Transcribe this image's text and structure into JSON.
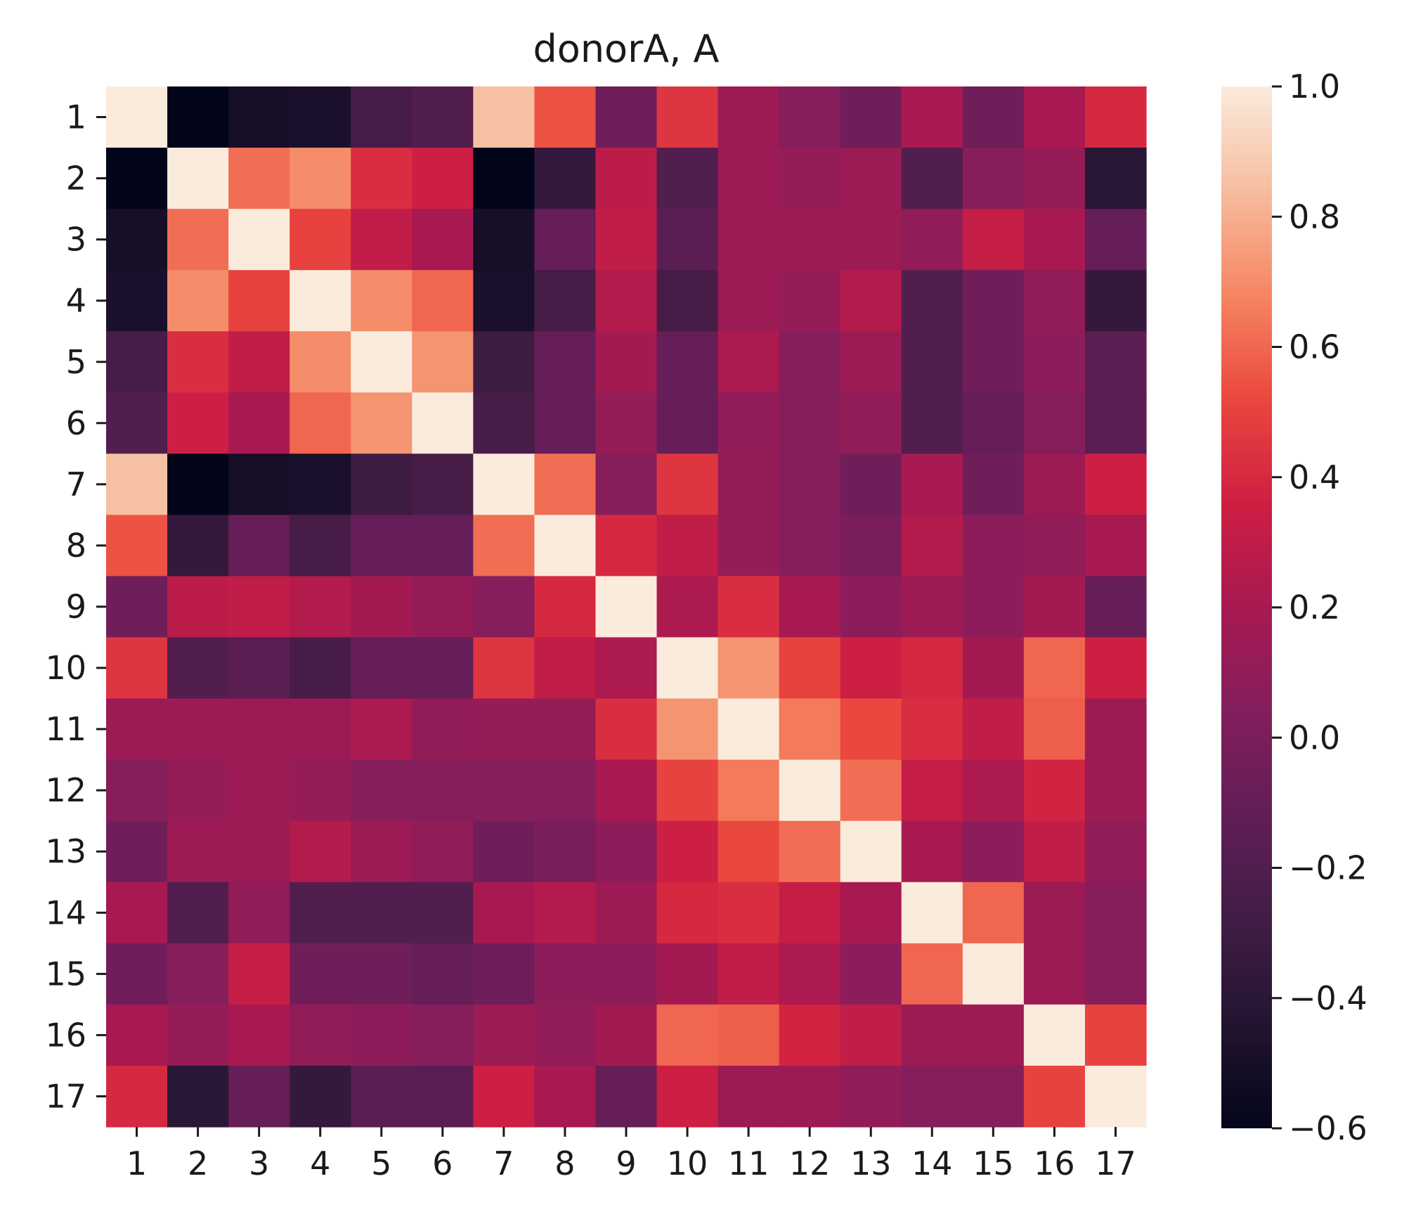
{
  "chart_data": {
    "type": "heatmap",
    "title": "donorA, A",
    "xlabel": "",
    "ylabel": "",
    "x_categories": [
      "1",
      "2",
      "3",
      "4",
      "5",
      "6",
      "7",
      "8",
      "9",
      "10",
      "11",
      "12",
      "13",
      "14",
      "15",
      "16",
      "17"
    ],
    "y_categories": [
      "1",
      "2",
      "3",
      "4",
      "5",
      "6",
      "7",
      "8",
      "9",
      "10",
      "11",
      "12",
      "13",
      "14",
      "15",
      "16",
      "17"
    ],
    "colormap": "rocket",
    "vmin": -0.6,
    "vmax": 1.0,
    "colorbar_ticks": [
      1.0,
      0.8,
      0.6,
      0.4,
      0.2,
      0.0,
      -0.2,
      -0.4,
      -0.6
    ],
    "colorbar_tick_labels": [
      "1.0",
      "0.8",
      "0.6",
      "0.4",
      "0.2",
      "0.0",
      "−0.2",
      "−0.4",
      "−0.6"
    ],
    "values": [
      [
        1.0,
        -0.6,
        -0.5,
        -0.48,
        -0.25,
        -0.2,
        0.85,
        0.55,
        -0.05,
        0.45,
        0.15,
        0.05,
        -0.05,
        0.2,
        -0.05,
        0.2,
        0.4
      ],
      [
        -0.6,
        1.0,
        0.62,
        0.7,
        0.42,
        0.35,
        -0.6,
        -0.35,
        0.28,
        -0.2,
        0.15,
        0.12,
        0.15,
        -0.2,
        0.05,
        0.12,
        -0.4
      ],
      [
        -0.5,
        0.62,
        1.0,
        0.5,
        0.3,
        0.2,
        -0.5,
        -0.1,
        0.3,
        -0.15,
        0.15,
        0.15,
        0.15,
        0.1,
        0.32,
        0.2,
        -0.1
      ],
      [
        -0.48,
        0.7,
        0.5,
        1.0,
        0.7,
        0.6,
        -0.48,
        -0.25,
        0.25,
        -0.25,
        0.15,
        0.12,
        0.25,
        -0.2,
        -0.05,
        0.1,
        -0.35
      ],
      [
        -0.25,
        0.42,
        0.3,
        0.7,
        1.0,
        0.72,
        -0.3,
        -0.1,
        0.18,
        -0.1,
        0.22,
        0.05,
        0.15,
        -0.2,
        -0.05,
        0.08,
        -0.15
      ],
      [
        -0.2,
        0.35,
        0.2,
        0.6,
        0.72,
        1.0,
        -0.25,
        -0.1,
        0.12,
        -0.1,
        0.1,
        0.05,
        0.1,
        -0.2,
        -0.1,
        0.05,
        -0.15
      ],
      [
        0.85,
        -0.6,
        -0.5,
        -0.48,
        -0.3,
        -0.25,
        1.0,
        0.62,
        0.05,
        0.45,
        0.12,
        0.05,
        -0.05,
        0.2,
        -0.05,
        0.15,
        0.35
      ],
      [
        0.55,
        -0.35,
        -0.1,
        -0.25,
        -0.1,
        -0.1,
        0.62,
        1.0,
        0.4,
        0.3,
        0.12,
        0.05,
        0.0,
        0.25,
        0.08,
        0.1,
        0.2
      ],
      [
        -0.05,
        0.28,
        0.3,
        0.25,
        0.18,
        0.12,
        0.05,
        0.4,
        1.0,
        0.22,
        0.42,
        0.2,
        0.08,
        0.15,
        0.08,
        0.18,
        -0.1
      ],
      [
        0.45,
        -0.2,
        -0.15,
        -0.25,
        -0.1,
        -0.1,
        0.45,
        0.3,
        0.22,
        1.0,
        0.72,
        0.5,
        0.35,
        0.4,
        0.18,
        0.6,
        0.35
      ],
      [
        0.15,
        0.15,
        0.15,
        0.15,
        0.22,
        0.1,
        0.12,
        0.12,
        0.42,
        0.72,
        1.0,
        0.65,
        0.52,
        0.42,
        0.3,
        0.58,
        0.15
      ],
      [
        0.05,
        0.12,
        0.15,
        0.12,
        0.05,
        0.05,
        0.05,
        0.05,
        0.2,
        0.5,
        0.65,
        1.0,
        0.62,
        0.32,
        0.22,
        0.38,
        0.15
      ],
      [
        -0.05,
        0.15,
        0.15,
        0.25,
        0.15,
        0.1,
        -0.05,
        0.0,
        0.08,
        0.35,
        0.52,
        0.62,
        1.0,
        0.2,
        0.08,
        0.3,
        0.1
      ],
      [
        0.2,
        -0.2,
        0.1,
        -0.2,
        -0.2,
        -0.2,
        0.2,
        0.25,
        0.15,
        0.4,
        0.42,
        0.32,
        0.2,
        1.0,
        0.6,
        0.15,
        0.05
      ],
      [
        -0.05,
        0.05,
        0.32,
        -0.05,
        -0.05,
        -0.1,
        -0.05,
        0.08,
        0.08,
        0.18,
        0.3,
        0.22,
        0.08,
        0.6,
        1.0,
        0.15,
        0.05
      ],
      [
        0.2,
        0.12,
        0.2,
        0.1,
        0.08,
        0.05,
        0.15,
        0.1,
        0.18,
        0.6,
        0.58,
        0.38,
        0.3,
        0.15,
        0.15,
        1.0,
        0.5
      ],
      [
        0.4,
        -0.4,
        -0.1,
        -0.35,
        -0.15,
        -0.15,
        0.35,
        0.2,
        -0.1,
        0.35,
        0.15,
        0.15,
        0.1,
        0.05,
        0.05,
        0.5,
        1.0
      ]
    ]
  }
}
